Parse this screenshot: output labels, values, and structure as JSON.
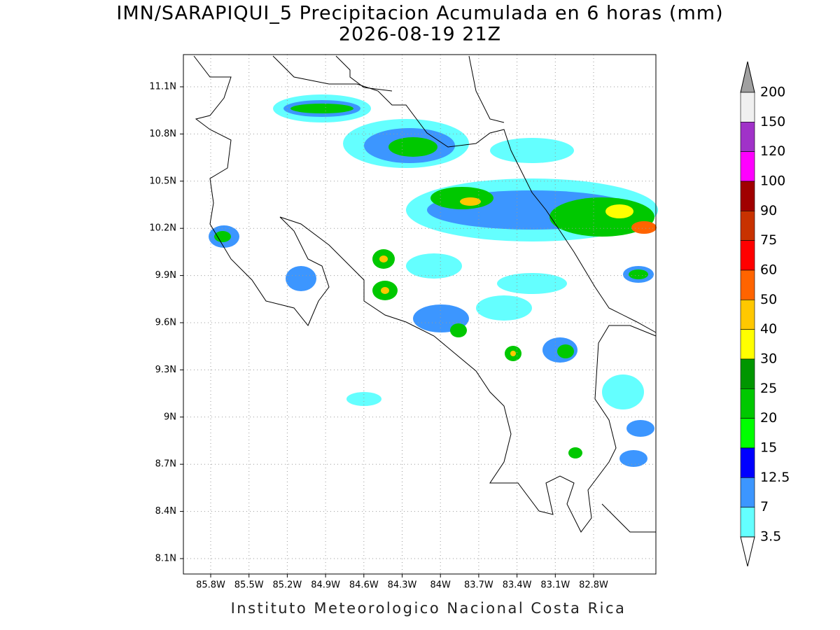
{
  "title": "IMN/SARAPIQUI_5 Precipitacion Acumulada en 6 horas (mm)",
  "subtitle": "2026-08-19 21Z",
  "lat_labels": [
    "11.1N",
    "10.8N",
    "10.5N",
    "10.2N",
    "9.9N",
    "9.6N",
    "9.3N",
    "9N",
    "8.7N",
    "8.4N",
    "8.1N"
  ],
  "lon_labels": [
    "85.8W",
    "85.5W",
    "85.2W",
    "84.9W",
    "84.6W",
    "84.3W",
    "84W",
    "83.7W",
    "83.4W",
    "83.1W",
    "82.8W"
  ],
  "colorbar": {
    "labels": [
      "200",
      "150",
      "120",
      "100",
      "90",
      "75",
      "60",
      "50",
      "40",
      "30",
      "25",
      "20",
      "15",
      "12.5",
      "7",
      "3.5"
    ],
    "colors": [
      "#f0f0f0",
      "#a032c8",
      "#ff00ff",
      "#a00000",
      "#c83200",
      "#ff0000",
      "#ff6400",
      "#ffc800",
      "#ffff00",
      "#009600",
      "#00c800",
      "#00ff00",
      "#0000ff",
      "#3c96ff",
      "#64ffff"
    ],
    "over_color": "#a0a0a0",
    "under_color": "#ffffff"
  },
  "footer": "Instituto Meteorologico Nacional Costa Rica"
}
